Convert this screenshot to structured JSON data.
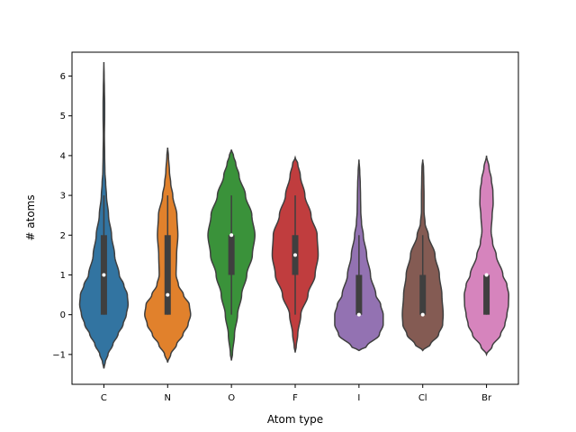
{
  "chart_data": {
    "type": "violin",
    "xlabel": "Atom type",
    "ylabel": "# atoms",
    "categories": [
      "C",
      "N",
      "O",
      "F",
      "I",
      "Cl",
      "Br"
    ],
    "ylim": [
      -1.75,
      6.6
    ],
    "yticks": [
      -1,
      0,
      1,
      2,
      3,
      4,
      5,
      6
    ],
    "colors": [
      "#3274a1",
      "#e1812c",
      "#3a923a",
      "#c03d3e",
      "#9372b2",
      "#845b53",
      "#d684bd"
    ],
    "violins": [
      {
        "category": "C",
        "extent": [
          -1.35,
          6.35
        ],
        "median": 1,
        "q1": 0,
        "q3": 2,
        "whisker_low": 0,
        "whisker_high": 3,
        "density": [
          [
            -1.35,
            0.0
          ],
          [
            -1.2,
            0.05
          ],
          [
            -1.0,
            0.16
          ],
          [
            -0.75,
            0.35
          ],
          [
            -0.5,
            0.55
          ],
          [
            -0.25,
            0.75
          ],
          [
            0.0,
            0.88
          ],
          [
            0.25,
            0.95
          ],
          [
            0.5,
            0.92
          ],
          [
            0.75,
            0.78
          ],
          [
            1.0,
            0.6
          ],
          [
            1.5,
            0.42
          ],
          [
            2.0,
            0.3
          ],
          [
            2.5,
            0.18
          ],
          [
            3.0,
            0.1
          ],
          [
            3.3,
            0.07
          ],
          [
            3.6,
            0.04
          ],
          [
            4.0,
            0.03
          ],
          [
            4.5,
            0.02
          ],
          [
            5.0,
            0.03
          ],
          [
            5.3,
            0.03
          ],
          [
            5.7,
            0.02
          ],
          [
            6.0,
            0.01
          ],
          [
            6.35,
            0.0
          ]
        ]
      },
      {
        "category": "N",
        "extent": [
          -1.2,
          4.2
        ],
        "median": 0.5,
        "q1": 0,
        "q3": 2,
        "whisker_low": 0,
        "whisker_high": 3,
        "density": [
          [
            -1.2,
            0.0
          ],
          [
            -1.0,
            0.12
          ],
          [
            -0.75,
            0.35
          ],
          [
            -0.5,
            0.6
          ],
          [
            -0.25,
            0.8
          ],
          [
            0.0,
            0.9
          ],
          [
            0.25,
            0.85
          ],
          [
            0.5,
            0.62
          ],
          [
            0.75,
            0.42
          ],
          [
            1.0,
            0.33
          ],
          [
            1.5,
            0.35
          ],
          [
            2.0,
            0.4
          ],
          [
            2.5,
            0.36
          ],
          [
            3.0,
            0.2
          ],
          [
            3.3,
            0.12
          ],
          [
            3.6,
            0.07
          ],
          [
            4.0,
            0.03
          ],
          [
            4.2,
            0.0
          ]
        ]
      },
      {
        "category": "O",
        "extent": [
          -1.15,
          4.15
        ],
        "median": 2,
        "q1": 1,
        "q3": 2,
        "whisker_low": 0,
        "whisker_high": 3,
        "density": [
          [
            -1.15,
            0.0
          ],
          [
            -1.0,
            0.04
          ],
          [
            -0.5,
            0.12
          ],
          [
            0.0,
            0.24
          ],
          [
            0.5,
            0.4
          ],
          [
            1.0,
            0.6
          ],
          [
            1.5,
            0.82
          ],
          [
            2.0,
            0.92
          ],
          [
            2.5,
            0.8
          ],
          [
            3.0,
            0.55
          ],
          [
            3.5,
            0.3
          ],
          [
            3.8,
            0.17
          ],
          [
            4.0,
            0.08
          ],
          [
            4.15,
            0.0
          ]
        ]
      },
      {
        "category": "F",
        "extent": [
          -0.95,
          3.95
        ],
        "median": 1.5,
        "q1": 1,
        "q3": 2,
        "whisker_low": 0,
        "whisker_high": 3,
        "density": [
          [
            -0.95,
            0.0
          ],
          [
            -0.8,
            0.04
          ],
          [
            -0.5,
            0.1
          ],
          [
            0.0,
            0.22
          ],
          [
            0.5,
            0.5
          ],
          [
            1.0,
            0.78
          ],
          [
            1.5,
            0.9
          ],
          [
            2.0,
            0.86
          ],
          [
            2.5,
            0.62
          ],
          [
            3.0,
            0.38
          ],
          [
            3.5,
            0.2
          ],
          [
            3.8,
            0.1
          ],
          [
            3.95,
            0.0
          ]
        ]
      },
      {
        "category": "I",
        "extent": [
          -0.9,
          3.9
        ],
        "median": 0,
        "q1": 0,
        "q3": 1,
        "whisker_low": 0,
        "whisker_high": 2,
        "density": [
          [
            -0.9,
            0.0
          ],
          [
            -0.8,
            0.3
          ],
          [
            -0.5,
            0.8
          ],
          [
            -0.25,
            0.95
          ],
          [
            0.0,
            0.95
          ],
          [
            0.25,
            0.85
          ],
          [
            0.5,
            0.66
          ],
          [
            1.0,
            0.45
          ],
          [
            1.5,
            0.3
          ],
          [
            2.0,
            0.17
          ],
          [
            2.3,
            0.1
          ],
          [
            2.6,
            0.07
          ],
          [
            3.0,
            0.06
          ],
          [
            3.3,
            0.05
          ],
          [
            3.6,
            0.03
          ],
          [
            3.9,
            0.0
          ]
        ]
      },
      {
        "category": "Cl",
        "extent": [
          -0.9,
          3.9
        ],
        "median": 0,
        "q1": 0,
        "q3": 1,
        "whisker_low": 0,
        "whisker_high": 2,
        "density": [
          [
            -0.9,
            0.0
          ],
          [
            -0.75,
            0.3
          ],
          [
            -0.5,
            0.62
          ],
          [
            -0.25,
            0.78
          ],
          [
            0.0,
            0.8
          ],
          [
            0.5,
            0.75
          ],
          [
            1.0,
            0.65
          ],
          [
            1.5,
            0.48
          ],
          [
            2.0,
            0.22
          ],
          [
            2.3,
            0.09
          ],
          [
            2.6,
            0.05
          ],
          [
            3.0,
            0.05
          ],
          [
            3.4,
            0.04
          ],
          [
            3.7,
            0.03
          ],
          [
            3.9,
            0.0
          ]
        ]
      },
      {
        "category": "Br",
        "extent": [
          -1.0,
          4.0
        ],
        "median": 1,
        "q1": 0,
        "q3": 1,
        "whisker_low": 0,
        "whisker_high": 1,
        "density": [
          [
            -1.0,
            0.0
          ],
          [
            -0.8,
            0.22
          ],
          [
            -0.5,
            0.55
          ],
          [
            -0.25,
            0.72
          ],
          [
            0.0,
            0.8
          ],
          [
            0.25,
            0.86
          ],
          [
            0.5,
            0.87
          ],
          [
            0.75,
            0.8
          ],
          [
            1.0,
            0.64
          ],
          [
            1.5,
            0.38
          ],
          [
            1.8,
            0.24
          ],
          [
            2.1,
            0.18
          ],
          [
            2.5,
            0.22
          ],
          [
            2.8,
            0.26
          ],
          [
            3.1,
            0.25
          ],
          [
            3.4,
            0.19
          ],
          [
            3.7,
            0.1
          ],
          [
            4.0,
            0.0
          ]
        ]
      }
    ]
  }
}
